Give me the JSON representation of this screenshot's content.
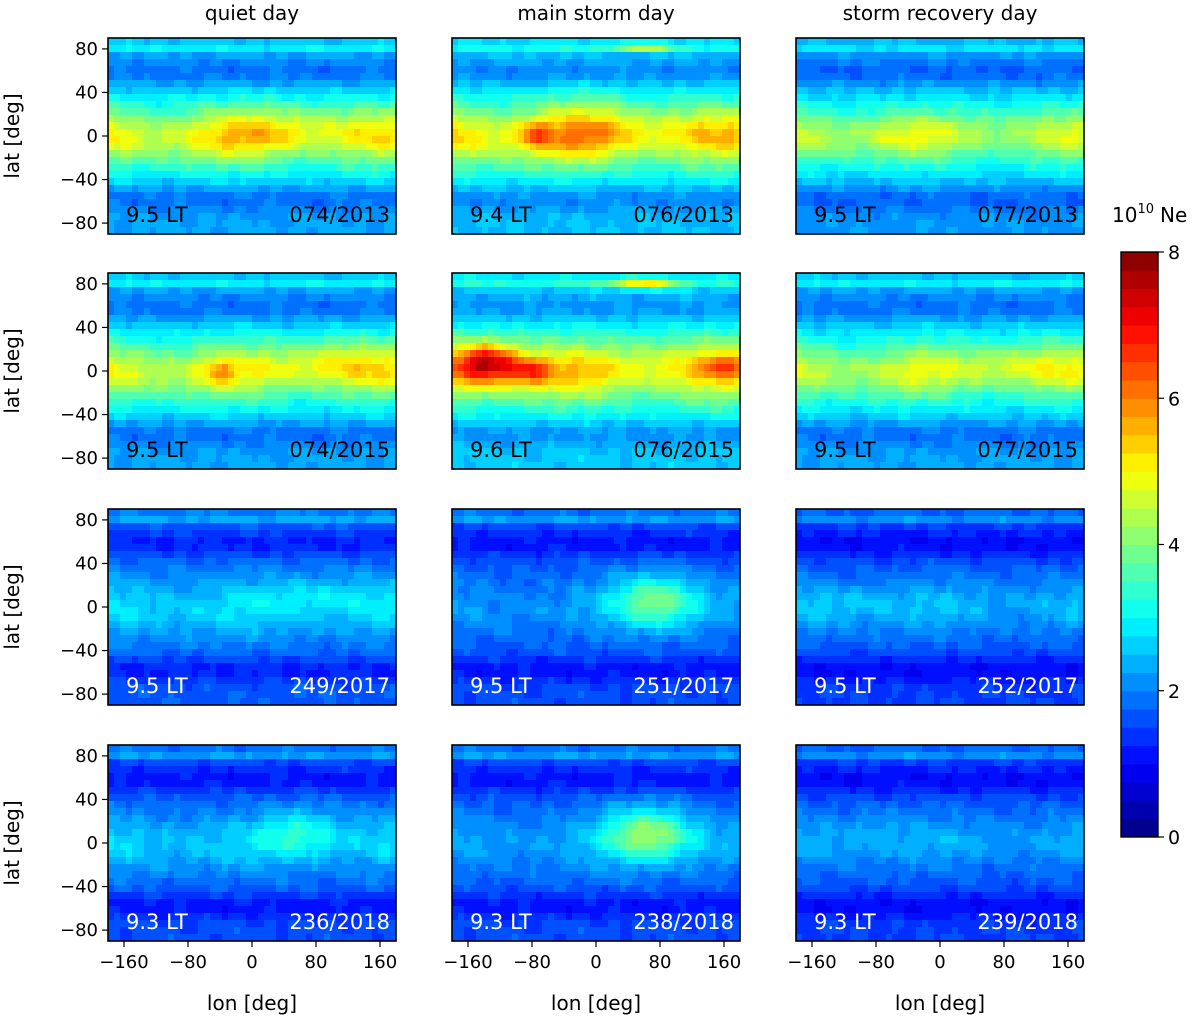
{
  "chart_data": {
    "type": "heatmap",
    "column_titles": [
      "quiet day",
      "main storm day",
      "storm recovery day"
    ],
    "xlabel": "lon [deg]",
    "ylabel": "lat [deg]",
    "xlim": [
      -180,
      180
    ],
    "ylim": [
      -90,
      90
    ],
    "x_ticks": [
      "−160",
      "−80",
      "0",
      "80",
      "160"
    ],
    "y_ticks": [
      "80",
      "40",
      "0",
      "−40",
      "−80"
    ],
    "colorbar": {
      "label_base": "10",
      "label_exp": "10",
      "label_unit": "Ne",
      "range": [
        0,
        8
      ],
      "ticks": [
        "0",
        "2",
        "4",
        "6",
        "8"
      ]
    },
    "panels": [
      {
        "row": 0,
        "col": 0,
        "lt": "9.5 LT",
        "date": "074/2013",
        "base": 2.3,
        "eq_amp": 2.3,
        "blobs": [
          [
            20,
            5,
            70,
            25,
            0.6
          ]
        ]
      },
      {
        "row": 0,
        "col": 1,
        "lt": "9.4 LT",
        "date": "076/2013",
        "base": 2.5,
        "eq_amp": 2.4,
        "blobs": [
          [
            -75,
            2,
            20,
            12,
            1.2
          ],
          [
            -10,
            10,
            60,
            30,
            0.7
          ],
          [
            60,
            82,
            40,
            4,
            1.5
          ]
        ]
      },
      {
        "row": 0,
        "col": 2,
        "lt": "9.5 LT",
        "date": "077/2013",
        "base": 2.2,
        "eq_amp": 2.0,
        "blobs": [
          [
            -60,
            5,
            50,
            18,
            0.3
          ]
        ]
      },
      {
        "row": 1,
        "col": 0,
        "lt": "9.5 LT",
        "date": "074/2015",
        "base": 2.3,
        "eq_amp": 2.2,
        "blobs": [
          [
            -40,
            0,
            15,
            10,
            1.0
          ],
          [
            100,
            10,
            60,
            20,
            0.6
          ]
        ]
      },
      {
        "row": 1,
        "col": 1,
        "lt": "9.6 LT",
        "date": "076/2015",
        "base": 2.6,
        "eq_amp": 2.3,
        "blobs": [
          [
            -135,
            8,
            40,
            18,
            3.0
          ],
          [
            -80,
            0,
            25,
            12,
            1.4
          ],
          [
            160,
            5,
            25,
            10,
            1.2
          ],
          [
            60,
            80,
            45,
            5,
            1.8
          ]
        ]
      },
      {
        "row": 1,
        "col": 2,
        "lt": "9.5 LT",
        "date": "077/2015",
        "base": 2.3,
        "eq_amp": 2.0,
        "blobs": [
          [
            100,
            5,
            70,
            18,
            0.4
          ]
        ]
      },
      {
        "row": 2,
        "col": 0,
        "lt": "9.5 LT",
        "date": "249/2017",
        "base": 1.7,
        "eq_amp": 0.9,
        "blobs": [
          [
            80,
            10,
            60,
            15,
            0.4
          ]
        ]
      },
      {
        "row": 2,
        "col": 1,
        "lt": "9.5 LT",
        "date": "251/2017",
        "base": 1.6,
        "eq_amp": 0.5,
        "blobs": [
          [
            75,
            5,
            55,
            25,
            1.9
          ]
        ]
      },
      {
        "row": 2,
        "col": 2,
        "lt": "9.5 LT",
        "date": "252/2017",
        "base": 1.5,
        "eq_amp": 0.8,
        "blobs": [
          [
            -100,
            5,
            60,
            15,
            0.3
          ]
        ]
      },
      {
        "row": 3,
        "col": 0,
        "lt": "9.3 LT",
        "date": "236/2018",
        "base": 1.6,
        "eq_amp": 0.9,
        "blobs": [
          [
            60,
            10,
            45,
            22,
            0.9
          ]
        ]
      },
      {
        "row": 3,
        "col": 1,
        "lt": "9.3 LT",
        "date": "238/2018",
        "base": 1.6,
        "eq_amp": 0.6,
        "blobs": [
          [
            65,
            8,
            55,
            25,
            2.1
          ]
        ]
      },
      {
        "row": 3,
        "col": 2,
        "lt": "9.3 LT",
        "date": "239/2018",
        "base": 1.5,
        "eq_amp": 0.7,
        "blobs": [
          [
            -80,
            15,
            50,
            20,
            0.3
          ]
        ]
      }
    ],
    "annotation_colors": {
      "light_panel_text": "#000000",
      "dark_panel_text": "#ffffff"
    }
  }
}
